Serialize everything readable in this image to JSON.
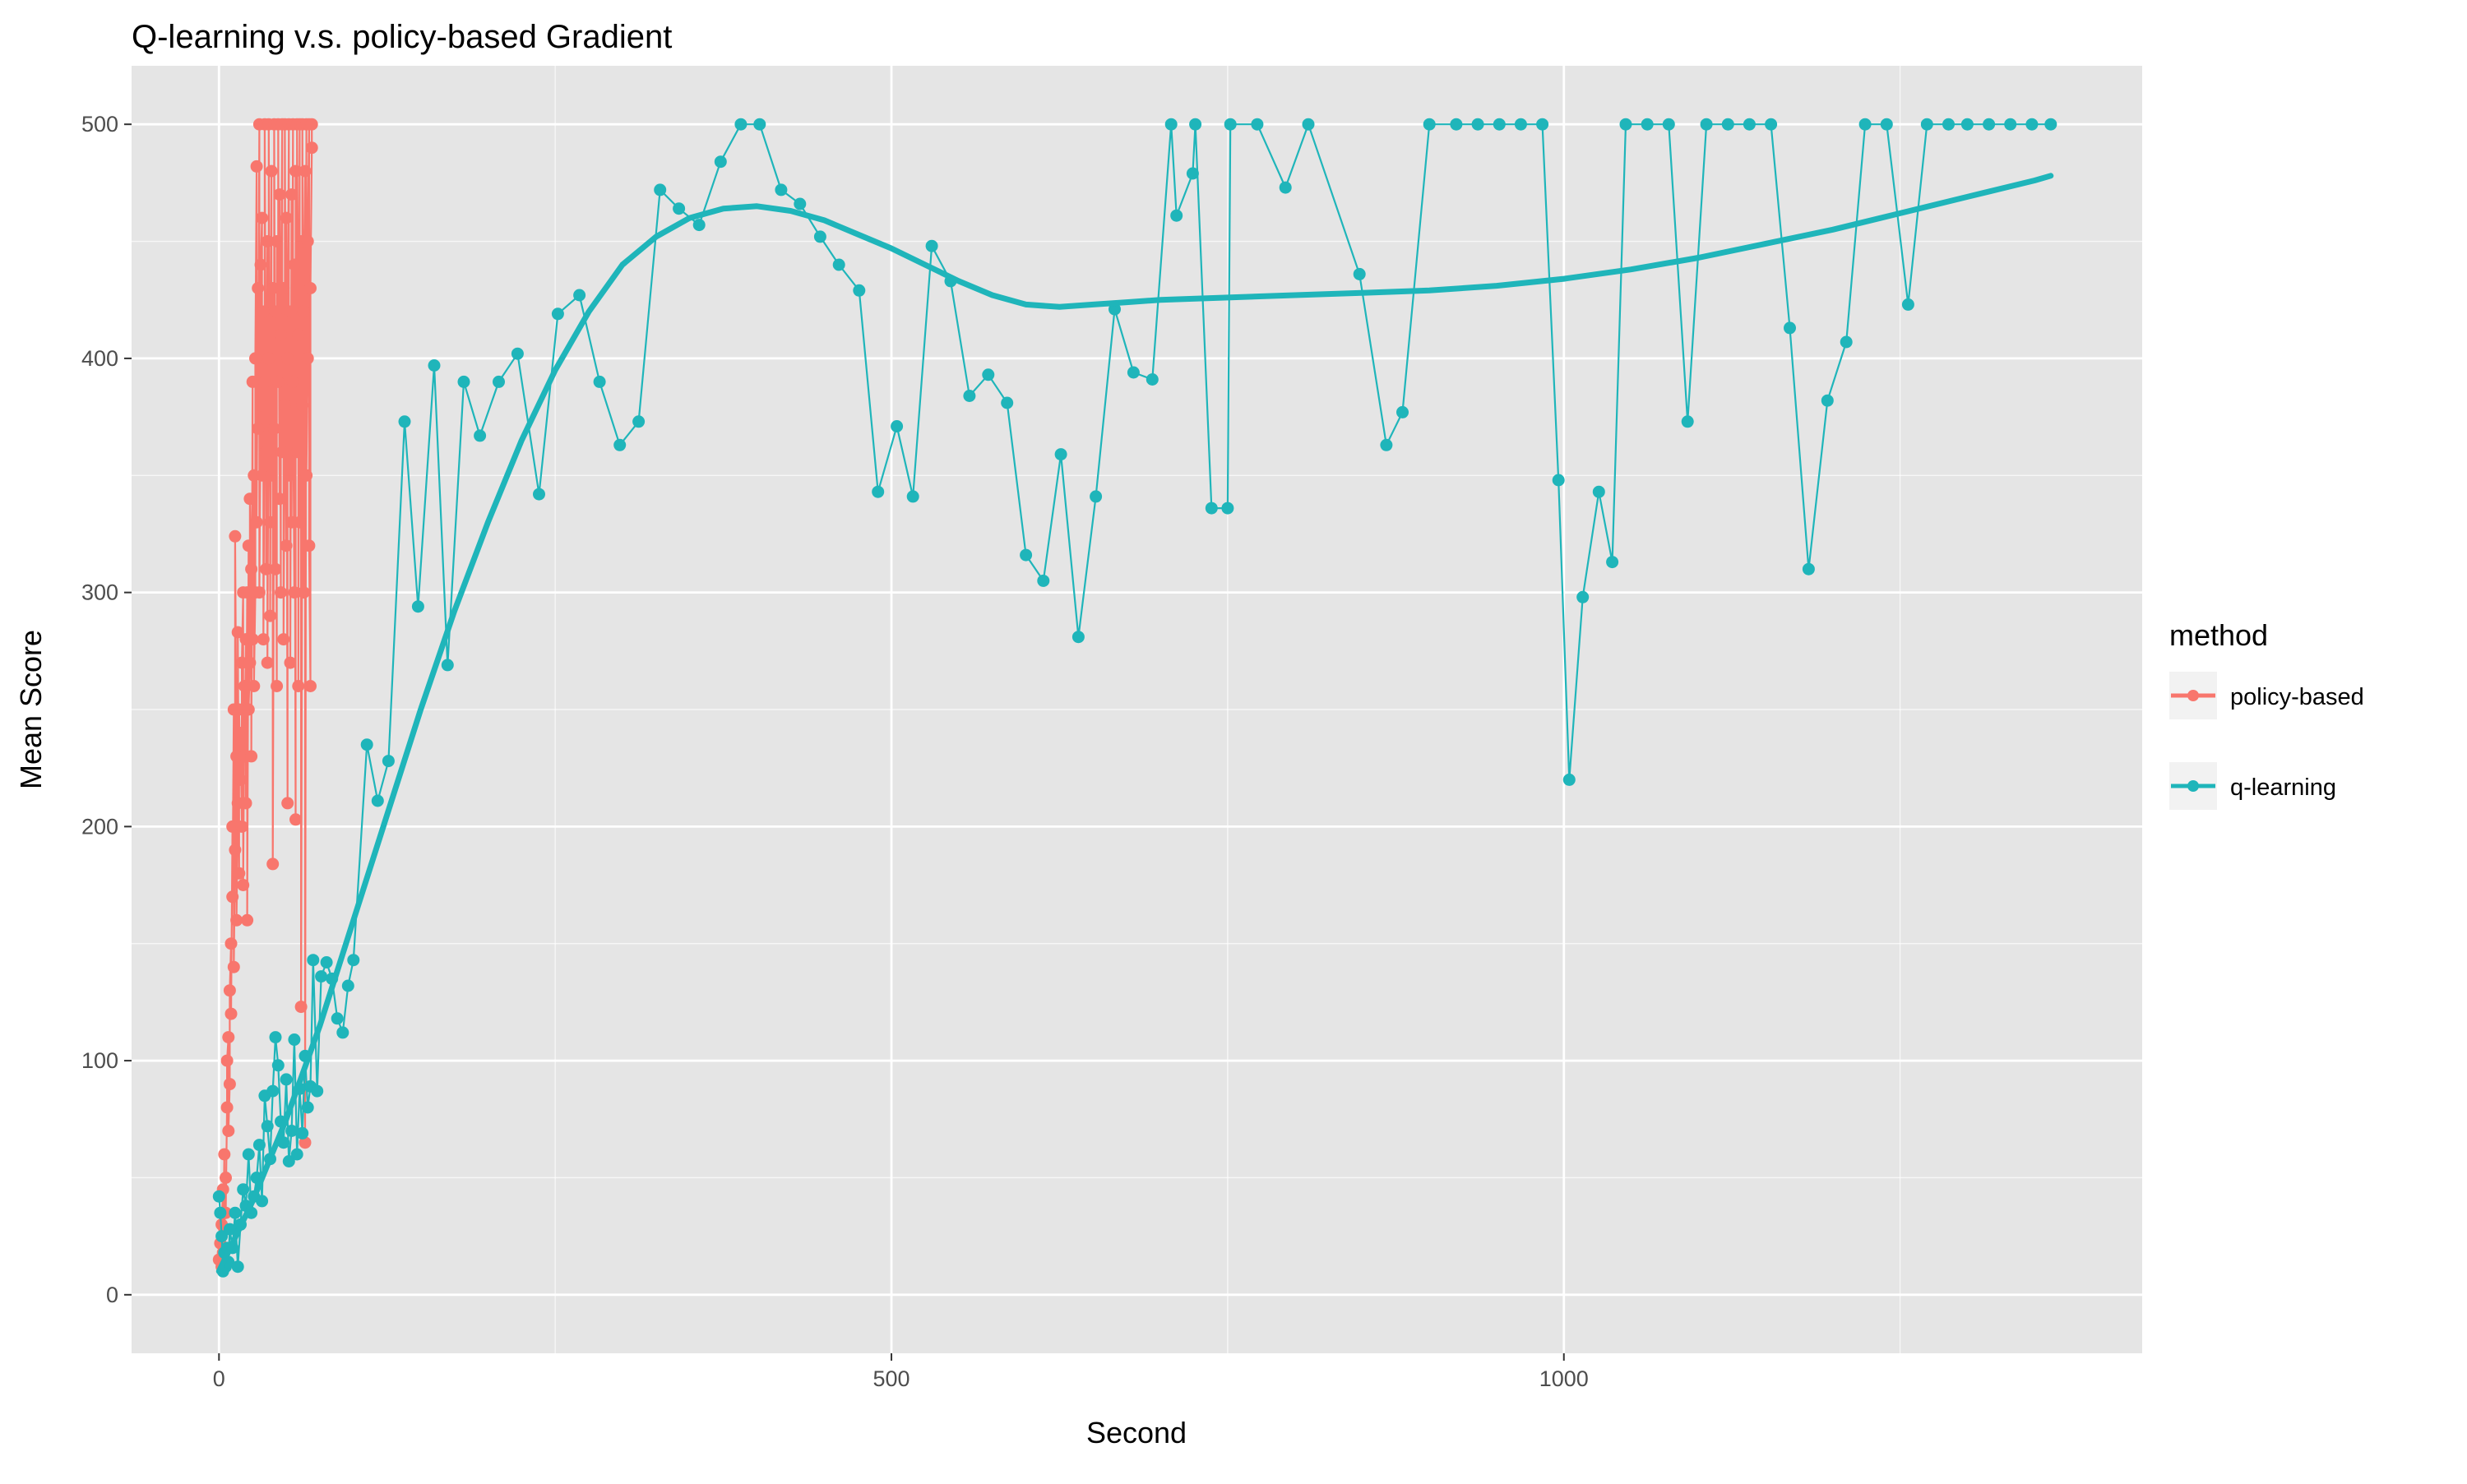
{
  "colors": {
    "panel": "#e5e5e5",
    "grid_major": "#ffffff",
    "policy": "#F8766D",
    "qlearning": "#1FB5BA",
    "legend_key": "#f2f2f2"
  },
  "chart_data": {
    "type": "scatter",
    "title": "Q-learning v.s. policy-based Gradient",
    "xlabel": "Second",
    "ylabel": "Mean Score",
    "xlim": [
      -65,
      1430
    ],
    "ylim": [
      -25,
      525
    ],
    "x_ticks": [
      0,
      500,
      1000
    ],
    "y_ticks": [
      0,
      100,
      200,
      300,
      400,
      500
    ],
    "grid": true,
    "legend": {
      "title": "method",
      "position": "right",
      "entries": [
        "policy-based",
        "q-learning"
      ]
    },
    "series": [
      {
        "name": "policy-based",
        "color_key": "policy",
        "points": [
          [
            0,
            15
          ],
          [
            1,
            22
          ],
          [
            2,
            12
          ],
          [
            2,
            30
          ],
          [
            3,
            45
          ],
          [
            3,
            18
          ],
          [
            4,
            60
          ],
          [
            4,
            28
          ],
          [
            5,
            50
          ],
          [
            5,
            35
          ],
          [
            6,
            80
          ],
          [
            6,
            100
          ],
          [
            7,
            110
          ],
          [
            7,
            70
          ],
          [
            8,
            90
          ],
          [
            8,
            130
          ],
          [
            9,
            150
          ],
          [
            9,
            120
          ],
          [
            10,
            200
          ],
          [
            10,
            170
          ],
          [
            11,
            250
          ],
          [
            11,
            140
          ],
          [
            12,
            190
          ],
          [
            12,
            324
          ],
          [
            13,
            230
          ],
          [
            13,
            160
          ],
          [
            14,
            210
          ],
          [
            14,
            283
          ],
          [
            15,
            180
          ],
          [
            15,
            250
          ],
          [
            16,
            220
          ],
          [
            16,
            240
          ],
          [
            17,
            200
          ],
          [
            17,
            270
          ],
          [
            18,
            300
          ],
          [
            18,
            175
          ],
          [
            19,
            260
          ],
          [
            19,
            230
          ],
          [
            20,
            280
          ],
          [
            20,
            210
          ],
          [
            21,
            300
          ],
          [
            21,
            160
          ],
          [
            22,
            320
          ],
          [
            22,
            250
          ],
          [
            23,
            270
          ],
          [
            23,
            340
          ],
          [
            24,
            310
          ],
          [
            24,
            230
          ],
          [
            25,
            390
          ],
          [
            25,
            280
          ],
          [
            26,
            350
          ],
          [
            26,
            260
          ],
          [
            27,
            300
          ],
          [
            27,
            400
          ],
          [
            28,
            482
          ],
          [
            28,
            330
          ],
          [
            29,
            430
          ],
          [
            29,
            370
          ],
          [
            30,
            500
          ],
          [
            30,
            300
          ],
          [
            31,
            380
          ],
          [
            31,
            440
          ],
          [
            32,
            460
          ],
          [
            32,
            350
          ],
          [
            33,
            420
          ],
          [
            33,
            280
          ],
          [
            34,
            390
          ],
          [
            34,
            500
          ],
          [
            35,
            360
          ],
          [
            35,
            310
          ],
          [
            36,
            450
          ],
          [
            36,
            270
          ],
          [
            37,
            400
          ],
          [
            37,
            500
          ],
          [
            38,
            330
          ],
          [
            38,
            290
          ],
          [
            39,
            480
          ],
          [
            39,
            350
          ],
          [
            40,
            430
          ],
          [
            40,
            184
          ],
          [
            41,
            370
          ],
          [
            41,
            500
          ],
          [
            42,
            310
          ],
          [
            42,
            420
          ],
          [
            43,
            260
          ],
          [
            43,
            450
          ],
          [
            44,
            390
          ],
          [
            44,
            500
          ],
          [
            45,
            340
          ],
          [
            45,
            470
          ],
          [
            46,
            300
          ],
          [
            46,
            410
          ],
          [
            47,
            500
          ],
          [
            47,
            360
          ],
          [
            48,
            430
          ],
          [
            48,
            280
          ],
          [
            49,
            380
          ],
          [
            49,
            500
          ],
          [
            50,
            320
          ],
          [
            50,
            460
          ],
          [
            51,
            210
          ],
          [
            51,
            400
          ],
          [
            52,
            500
          ],
          [
            52,
            350
          ],
          [
            53,
            420
          ],
          [
            53,
            270
          ],
          [
            54,
            470
          ],
          [
            54,
            330
          ],
          [
            55,
            500
          ],
          [
            55,
            390
          ],
          [
            56,
            300
          ],
          [
            56,
            440
          ],
          [
            57,
            203
          ],
          [
            57,
            480
          ],
          [
            58,
            360
          ],
          [
            58,
            500
          ],
          [
            59,
            410
          ],
          [
            59,
            260
          ],
          [
            60,
            500
          ],
          [
            60,
            330
          ],
          [
            61,
            450
          ],
          [
            61,
            123
          ],
          [
            62,
            380
          ],
          [
            62,
            500
          ],
          [
            63,
            300
          ],
          [
            63,
            420
          ],
          [
            64,
            480
          ],
          [
            64,
            65
          ],
          [
            65,
            500
          ],
          [
            65,
            350
          ],
          [
            66,
            400
          ],
          [
            66,
            450
          ],
          [
            67,
            500
          ],
          [
            67,
            320
          ],
          [
            68,
            260
          ],
          [
            68,
            430
          ],
          [
            69,
            490
          ],
          [
            69,
            500
          ]
        ]
      },
      {
        "name": "q-learning",
        "color_key": "qlearning",
        "points": [
          [
            0,
            42
          ],
          [
            1,
            35
          ],
          [
            2,
            25
          ],
          [
            3,
            10
          ],
          [
            4,
            18
          ],
          [
            5,
            12
          ],
          [
            6,
            20
          ],
          [
            7,
            14
          ],
          [
            8,
            28
          ],
          [
            10,
            20
          ],
          [
            12,
            35
          ],
          [
            14,
            12
          ],
          [
            16,
            30
          ],
          [
            18,
            45
          ],
          [
            20,
            38
          ],
          [
            22,
            60
          ],
          [
            24,
            35
          ],
          [
            26,
            42
          ],
          [
            28,
            50
          ],
          [
            30,
            64
          ],
          [
            32,
            40
          ],
          [
            34,
            85
          ],
          [
            36,
            72
          ],
          [
            38,
            58
          ],
          [
            40,
            87
          ],
          [
            42,
            110
          ],
          [
            44,
            98
          ],
          [
            46,
            74
          ],
          [
            48,
            65
          ],
          [
            50,
            92
          ],
          [
            52,
            57
          ],
          [
            54,
            70
          ],
          [
            56,
            109
          ],
          [
            58,
            60
          ],
          [
            60,
            88
          ],
          [
            62,
            69
          ],
          [
            64,
            102
          ],
          [
            66,
            80
          ],
          [
            68,
            89
          ],
          [
            70,
            143
          ],
          [
            73,
            87
          ],
          [
            76,
            136
          ],
          [
            80,
            142
          ],
          [
            84,
            135
          ],
          [
            88,
            118
          ],
          [
            92,
            112
          ],
          [
            96,
            132
          ],
          [
            100,
            143
          ],
          [
            110,
            235
          ],
          [
            118,
            211
          ],
          [
            126,
            228
          ],
          [
            138,
            373
          ],
          [
            148,
            294
          ],
          [
            160,
            397
          ],
          [
            170,
            269
          ],
          [
            182,
            390
          ],
          [
            194,
            367
          ],
          [
            208,
            390
          ],
          [
            222,
            402
          ],
          [
            238,
            342
          ],
          [
            252,
            419
          ],
          [
            268,
            427
          ],
          [
            283,
            390
          ],
          [
            298,
            363
          ],
          [
            312,
            373
          ],
          [
            328,
            472
          ],
          [
            342,
            464
          ],
          [
            357,
            457
          ],
          [
            373,
            484
          ],
          [
            388,
            500
          ],
          [
            402,
            500
          ],
          [
            418,
            472
          ],
          [
            432,
            466
          ],
          [
            447,
            452
          ],
          [
            461,
            440
          ],
          [
            476,
            429
          ],
          [
            490,
            343
          ],
          [
            504,
            371
          ],
          [
            516,
            341
          ],
          [
            530,
            448
          ],
          [
            544,
            433
          ],
          [
            558,
            384
          ],
          [
            572,
            393
          ],
          [
            586,
            381
          ],
          [
            600,
            316
          ],
          [
            613,
            305
          ],
          [
            626,
            359
          ],
          [
            639,
            281
          ],
          [
            652,
            341
          ],
          [
            666,
            421
          ],
          [
            680,
            394
          ],
          [
            694,
            391
          ],
          [
            708,
            500
          ],
          [
            712,
            461
          ],
          [
            724,
            479
          ],
          [
            726,
            500
          ],
          [
            738,
            336
          ],
          [
            750,
            336
          ],
          [
            752,
            500
          ],
          [
            772,
            500
          ],
          [
            793,
            473
          ],
          [
            810,
            500
          ],
          [
            848,
            436
          ],
          [
            868,
            363
          ],
          [
            880,
            377
          ],
          [
            900,
            500
          ],
          [
            920,
            500
          ],
          [
            936,
            500
          ],
          [
            952,
            500
          ],
          [
            968,
            500
          ],
          [
            984,
            500
          ],
          [
            996,
            348
          ],
          [
            1004,
            220
          ],
          [
            1014,
            298
          ],
          [
            1026,
            343
          ],
          [
            1036,
            313
          ],
          [
            1046,
            500
          ],
          [
            1062,
            500
          ],
          [
            1078,
            500
          ],
          [
            1092,
            373
          ],
          [
            1106,
            500
          ],
          [
            1122,
            500
          ],
          [
            1138,
            500
          ],
          [
            1154,
            500
          ],
          [
            1168,
            413
          ],
          [
            1182,
            310
          ],
          [
            1196,
            382
          ],
          [
            1210,
            407
          ],
          [
            1224,
            500
          ],
          [
            1240,
            500
          ],
          [
            1256,
            423
          ],
          [
            1270,
            500
          ],
          [
            1286,
            500
          ],
          [
            1300,
            500
          ],
          [
            1316,
            500
          ],
          [
            1332,
            500
          ],
          [
            1348,
            500
          ],
          [
            1362,
            500
          ]
        ]
      }
    ],
    "smooth": {
      "series": "q-learning",
      "color_key": "qlearning",
      "points": [
        [
          0,
          10
        ],
        [
          25,
          40
        ],
        [
          50,
          75
        ],
        [
          75,
          115
        ],
        [
          100,
          160
        ],
        [
          125,
          205
        ],
        [
          150,
          250
        ],
        [
          175,
          292
        ],
        [
          200,
          330
        ],
        [
          225,
          365
        ],
        [
          250,
          395
        ],
        [
          275,
          420
        ],
        [
          300,
          440
        ],
        [
          325,
          452
        ],
        [
          350,
          460
        ],
        [
          375,
          464
        ],
        [
          400,
          465
        ],
        [
          425,
          463
        ],
        [
          450,
          459
        ],
        [
          475,
          453
        ],
        [
          500,
          447
        ],
        [
          525,
          440
        ],
        [
          550,
          433
        ],
        [
          575,
          427
        ],
        [
          600,
          423
        ],
        [
          625,
          422
        ],
        [
          650,
          423
        ],
        [
          675,
          424
        ],
        [
          700,
          425
        ],
        [
          750,
          426
        ],
        [
          800,
          427
        ],
        [
          850,
          428
        ],
        [
          900,
          429
        ],
        [
          950,
          431
        ],
        [
          1000,
          434
        ],
        [
          1050,
          438
        ],
        [
          1100,
          443
        ],
        [
          1150,
          449
        ],
        [
          1200,
          455
        ],
        [
          1250,
          462
        ],
        [
          1300,
          469
        ],
        [
          1350,
          476
        ],
        [
          1362,
          478
        ]
      ]
    }
  }
}
